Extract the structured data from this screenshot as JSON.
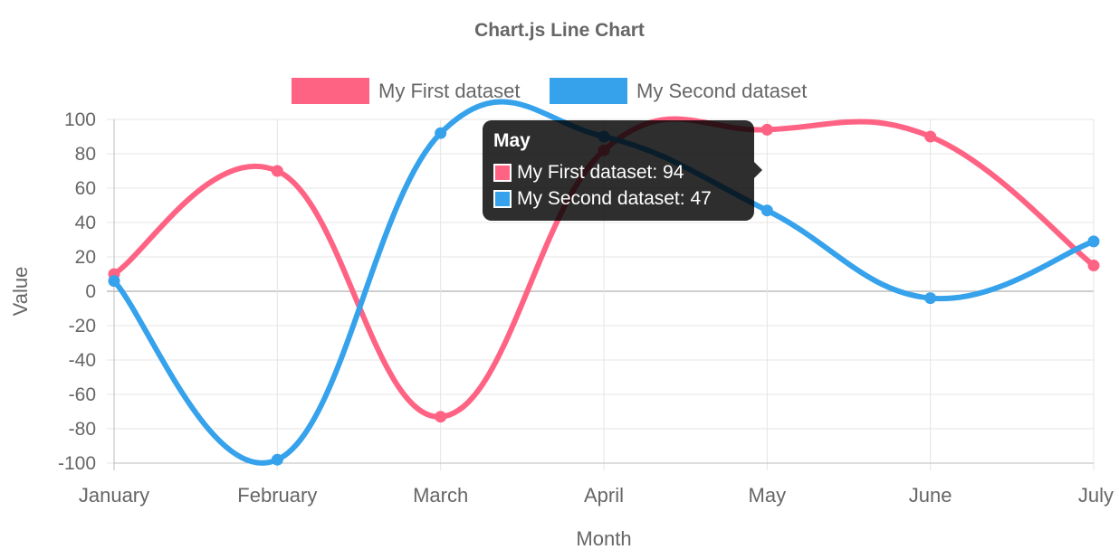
{
  "chart_data": {
    "type": "line",
    "title": "Chart.js Line Chart",
    "xlabel": "Month",
    "ylabel": "Value",
    "categories": [
      "January",
      "February",
      "March",
      "April",
      "May",
      "June",
      "July"
    ],
    "ylim": [
      -100,
      100
    ],
    "yticks": [
      100,
      80,
      60,
      40,
      20,
      0,
      -20,
      -40,
      -60,
      -80,
      -100
    ],
    "grid": true,
    "legend_position": "top",
    "curve": "smooth",
    "series": [
      {
        "name": "My First dataset",
        "color": "#ff6384",
        "values": [
          10,
          70,
          -73,
          82,
          94,
          90,
          15
        ]
      },
      {
        "name": "My Second dataset",
        "color": "#36a2eb",
        "values": [
          6,
          -98,
          92,
          90,
          47,
          -4,
          29
        ]
      }
    ]
  },
  "tooltip": {
    "title": "May",
    "rows": [
      {
        "label": "My First dataset: 94",
        "color": "#ff6384"
      },
      {
        "label": "My Second dataset: 47",
        "color": "#36a2eb"
      }
    ]
  }
}
